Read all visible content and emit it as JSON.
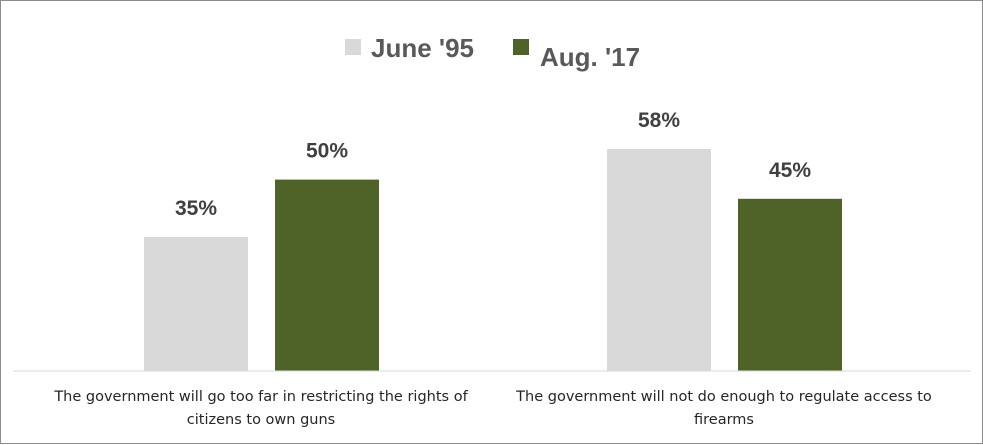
{
  "chart_data": {
    "type": "bar",
    "title": "",
    "xlabel": "",
    "ylabel": "",
    "ylim": [
      0,
      70
    ],
    "grid": false,
    "legend_position": "top",
    "categories": [
      "The government will go too far in restricting the rights of citizens to own guns",
      "The government will not do enough to regulate access to firearms"
    ],
    "series": [
      {
        "name": "June '95",
        "values": [
          35,
          58
        ],
        "color": "#d9d9d9",
        "labels": [
          "35%",
          "58%"
        ]
      },
      {
        "name": "Aug. '17",
        "values": [
          50,
          45
        ],
        "color": "#4f6228",
        "labels": [
          "50%",
          "45%"
        ]
      }
    ]
  },
  "legend": {
    "items": [
      {
        "label": "June '95",
        "color": "#d9d9d9"
      },
      {
        "label": "Aug. '17",
        "color": "#4f6228"
      }
    ]
  },
  "category_lines": [
    [
      "The government will go too far in restricting the rights of",
      "citizens to own guns"
    ],
    [
      "The government will not do enough to regulate access to",
      "firearms"
    ]
  ]
}
